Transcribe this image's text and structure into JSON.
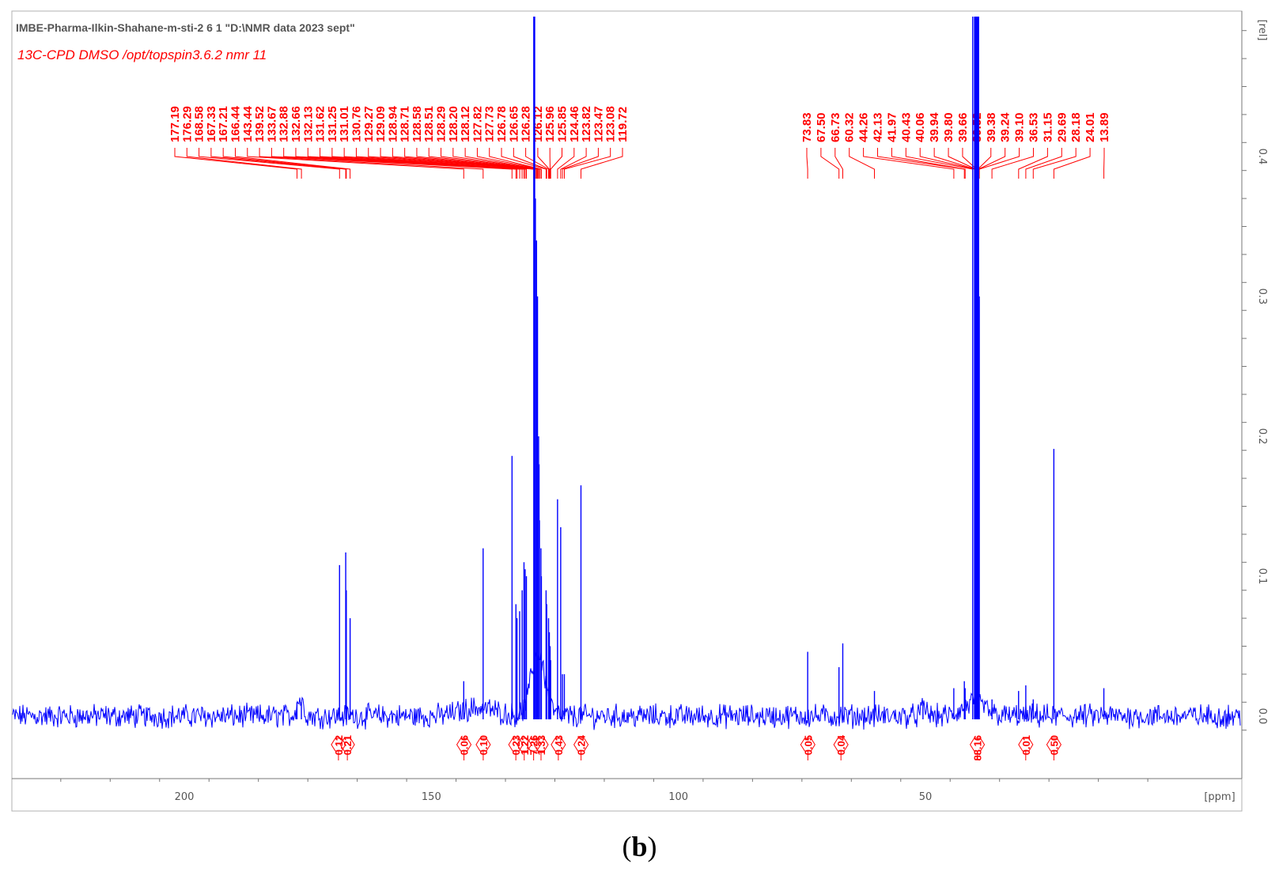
{
  "header": {
    "line1": "IMBE-Pharma-Ilkin-Shahane-m-sti-2  6  1  \"D:\\NMR data 2023 sept\"",
    "line2": "13C-CPD DMSO /opt/topspin3.6.2 nmr 11"
  },
  "caption": {
    "open": "(",
    "letter": "b",
    "close": ")"
  },
  "colors": {
    "spectrum": "#0000ff",
    "annotation": "#ff0000",
    "axis": "#555555",
    "frame": "#b0b0b0"
  },
  "chart_data": {
    "type": "line",
    "title": "",
    "xlabel": "[ppm]",
    "ylabel": "[rel]",
    "xlim": [
      236,
      0
    ],
    "ylim": [
      -0.01,
      0.5
    ],
    "x_ticks": [
      "200",
      "150",
      "100",
      "50"
    ],
    "y_ticks": [
      "0.0",
      "0.1",
      "0.2",
      "0.3",
      "0.4"
    ],
    "grid": false,
    "peak_labels_group1": [
      "177.19",
      "176.29",
      "168.58",
      "167.33",
      "167.21",
      "166.44",
      "143.44",
      "139.52",
      "133.67",
      "132.88",
      "132.66",
      "132.13",
      "131.62",
      "131.25",
      "131.01",
      "130.76",
      "129.27",
      "129.09",
      "128.94",
      "128.71",
      "128.58",
      "128.51",
      "128.29",
      "128.20",
      "128.12",
      "127.82",
      "127.73",
      "126.78",
      "126.65",
      "126.28",
      "126.12",
      "125.96",
      "125.85",
      "124.46",
      "123.82",
      "123.47",
      "123.08",
      "119.72"
    ],
    "peak_labels_group2": [
      "73.83",
      "67.50",
      "66.73",
      "60.32",
      "44.26",
      "42.13",
      "41.97",
      "40.43",
      "40.06",
      "39.94",
      "39.80",
      "39.66",
      "39.52",
      "39.38",
      "39.24",
      "39.10",
      "36.53",
      "31.15",
      "29.69",
      "28.18",
      "24.01",
      "13.89"
    ],
    "integrals": [
      {
        "ppm": 168.8,
        "label": "0.12"
      },
      {
        "ppm": 167.0,
        "label": "0.21"
      },
      {
        "ppm": 143.4,
        "label": "0.06"
      },
      {
        "ppm": 139.5,
        "label": "0.10"
      },
      {
        "ppm": 132.9,
        "label": "0.23"
      },
      {
        "ppm": 131.2,
        "label": "1.22"
      },
      {
        "ppm": 129.3,
        "label": "7.26"
      },
      {
        "ppm": 127.8,
        "label": "1.33"
      },
      {
        "ppm": 124.3,
        "label": "0.43"
      },
      {
        "ppm": 119.7,
        "label": "0.24"
      },
      {
        "ppm": 73.8,
        "label": "0.05"
      },
      {
        "ppm": 67.1,
        "label": "0.04"
      },
      {
        "ppm": 39.5,
        "label": "88.16"
      },
      {
        "ppm": 29.7,
        "label": "0.01"
      },
      {
        "ppm": 24.0,
        "label": "0.50"
      }
    ],
    "peaks": [
      {
        "ppm": 177.2,
        "h": 0.01
      },
      {
        "ppm": 176.3,
        "h": 0.01
      },
      {
        "ppm": 168.58,
        "h": 0.108
      },
      {
        "ppm": 167.33,
        "h": 0.117
      },
      {
        "ppm": 167.21,
        "h": 0.09
      },
      {
        "ppm": 166.44,
        "h": 0.07
      },
      {
        "ppm": 143.44,
        "h": 0.025
      },
      {
        "ppm": 139.52,
        "h": 0.12
      },
      {
        "ppm": 133.67,
        "h": 0.186
      },
      {
        "ppm": 132.88,
        "h": 0.08
      },
      {
        "ppm": 132.66,
        "h": 0.07
      },
      {
        "ppm": 132.13,
        "h": 0.075
      },
      {
        "ppm": 131.62,
        "h": 0.09
      },
      {
        "ppm": 131.25,
        "h": 0.11
      },
      {
        "ppm": 131.01,
        "h": 0.105
      },
      {
        "ppm": 130.76,
        "h": 0.1
      },
      {
        "ppm": 129.27,
        "h": 0.5
      },
      {
        "ppm": 129.09,
        "h": 0.5
      },
      {
        "ppm": 128.94,
        "h": 0.37
      },
      {
        "ppm": 128.71,
        "h": 0.34
      },
      {
        "ppm": 128.58,
        "h": 0.26
      },
      {
        "ppm": 128.51,
        "h": 0.3
      },
      {
        "ppm": 128.29,
        "h": 0.2
      },
      {
        "ppm": 128.2,
        "h": 0.18
      },
      {
        "ppm": 128.12,
        "h": 0.14
      },
      {
        "ppm": 127.82,
        "h": 0.12
      },
      {
        "ppm": 127.73,
        "h": 0.1
      },
      {
        "ppm": 126.78,
        "h": 0.09
      },
      {
        "ppm": 126.65,
        "h": 0.08
      },
      {
        "ppm": 126.28,
        "h": 0.07
      },
      {
        "ppm": 126.12,
        "h": 0.06
      },
      {
        "ppm": 125.96,
        "h": 0.05
      },
      {
        "ppm": 125.85,
        "h": 0.04
      },
      {
        "ppm": 124.46,
        "h": 0.155
      },
      {
        "ppm": 123.82,
        "h": 0.135
      },
      {
        "ppm": 123.47,
        "h": 0.03
      },
      {
        "ppm": 123.08,
        "h": 0.03
      },
      {
        "ppm": 119.72,
        "h": 0.165
      },
      {
        "ppm": 73.83,
        "h": 0.046
      },
      {
        "ppm": 67.5,
        "h": 0.035
      },
      {
        "ppm": 66.73,
        "h": 0.052
      },
      {
        "ppm": 60.32,
        "h": 0.018
      },
      {
        "ppm": 50.5,
        "h": 0.008
      },
      {
        "ppm": 44.26,
        "h": 0.02
      },
      {
        "ppm": 42.13,
        "h": 0.025
      },
      {
        "ppm": 41.97,
        "h": 0.02
      },
      {
        "ppm": 40.43,
        "h": 0.5
      },
      {
        "ppm": 40.06,
        "h": 0.5
      },
      {
        "ppm": 39.94,
        "h": 0.5
      },
      {
        "ppm": 39.8,
        "h": 0.5
      },
      {
        "ppm": 39.66,
        "h": 0.5
      },
      {
        "ppm": 39.52,
        "h": 0.5
      },
      {
        "ppm": 39.38,
        "h": 0.5
      },
      {
        "ppm": 39.24,
        "h": 0.5
      },
      {
        "ppm": 39.1,
        "h": 0.3
      },
      {
        "ppm": 36.53,
        "h": 0.012
      },
      {
        "ppm": 31.15,
        "h": 0.018
      },
      {
        "ppm": 29.69,
        "h": 0.022
      },
      {
        "ppm": 28.18,
        "h": 0.012
      },
      {
        "ppm": 24.01,
        "h": 0.191
      },
      {
        "ppm": 13.89,
        "h": 0.02
      }
    ]
  }
}
